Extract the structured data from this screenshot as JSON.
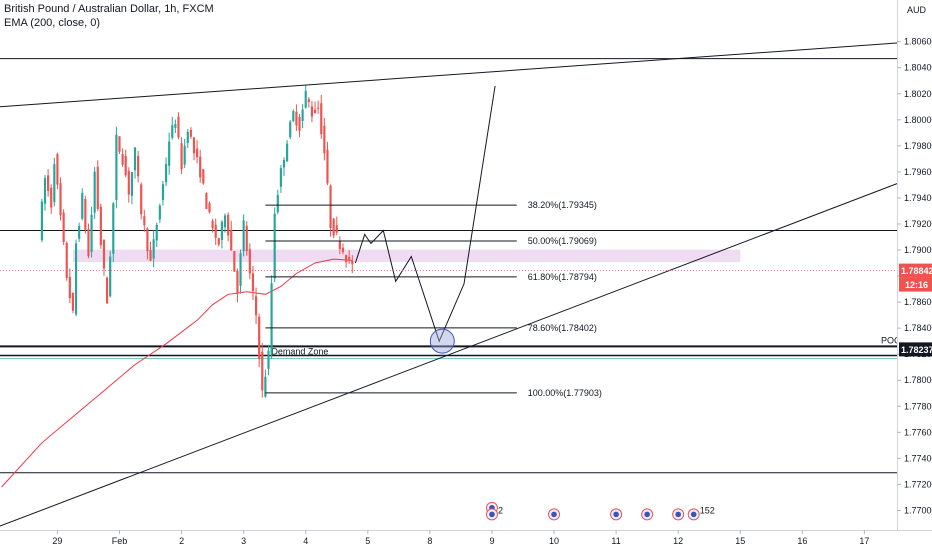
{
  "header": {
    "title": "British Pound / Australian Dollar, 1h, FXCM",
    "indicator": "EMA (200, close, 0)"
  },
  "colors": {
    "up": "#26a69a",
    "down": "#ef5350",
    "ema": "#f23645",
    "zone": "#e1bee7",
    "circle": "#3f51b5",
    "poc": "#26a69a"
  },
  "chart_data": {
    "type": "candlestick",
    "currency": "AUD",
    "ylim": [
      1.7685,
      1.8092
    ],
    "price_ticks": [
      {
        "v": 1.77,
        "label": "1.77000"
      },
      {
        "v": 1.772,
        "label": "1.77200"
      },
      {
        "v": 1.774,
        "label": "1.77400"
      },
      {
        "v": 1.776,
        "label": "1.77600"
      },
      {
        "v": 1.778,
        "label": "1.77800"
      },
      {
        "v": 1.78,
        "label": "1.78000"
      },
      {
        "v": 1.782,
        "label": "1.78200"
      },
      {
        "v": 1.784,
        "label": "1.78400"
      },
      {
        "v": 1.786,
        "label": "1.78600"
      },
      {
        "v": 1.788,
        "label": "1.78800"
      },
      {
        "v": 1.79,
        "label": "1.79000"
      },
      {
        "v": 1.792,
        "label": "1.79200"
      },
      {
        "v": 1.794,
        "label": "1.79400"
      },
      {
        "v": 1.796,
        "label": "1.79600"
      },
      {
        "v": 1.798,
        "label": "1.79800"
      },
      {
        "v": 1.8,
        "label": "1.80000"
      },
      {
        "v": 1.802,
        "label": "1.80200"
      },
      {
        "v": 1.804,
        "label": "1.80400"
      },
      {
        "v": 1.806,
        "label": "1.80600"
      }
    ],
    "time_ticks": [
      {
        "t": 5,
        "label": "29"
      },
      {
        "t": 25,
        "label": "Feb"
      },
      {
        "t": 45,
        "label": "2"
      },
      {
        "t": 65,
        "label": "3"
      },
      {
        "t": 85,
        "label": "4"
      },
      {
        "t": 105,
        "label": "5"
      },
      {
        "t": 125,
        "label": "8"
      },
      {
        "t": 145,
        "label": "9"
      },
      {
        "t": 165,
        "label": "10"
      },
      {
        "t": 185,
        "label": "11"
      },
      {
        "t": 205,
        "label": "12"
      },
      {
        "t": 225,
        "label": "15"
      },
      {
        "t": 245,
        "label": "16"
      },
      {
        "t": 265,
        "label": "17"
      }
    ],
    "xlim": [
      -13.5,
      275.5
    ],
    "candle_anchors": [
      [
        0,
        1.7912
      ],
      [
        2,
        1.7955
      ],
      [
        4,
        1.7935
      ],
      [
        5,
        1.797
      ],
      [
        7,
        1.7925
      ],
      [
        9,
        1.788
      ],
      [
        11,
        1.785
      ],
      [
        12,
        1.7905
      ],
      [
        14,
        1.794
      ],
      [
        16,
        1.7895
      ],
      [
        18,
        1.796
      ],
      [
        20,
        1.7905
      ],
      [
        22,
        1.786
      ],
      [
        24,
        1.7935
      ],
      [
        25,
        1.7985
      ],
      [
        27,
        1.797
      ],
      [
        29,
        1.7945
      ],
      [
        31,
        1.7975
      ],
      [
        33,
        1.793
      ],
      [
        36,
        1.789
      ],
      [
        38,
        1.792
      ],
      [
        40,
        1.795
      ],
      [
        42,
        1.7985
      ],
      [
        44,
        1.8
      ],
      [
        46,
        1.7965
      ],
      [
        48,
        1.7995
      ],
      [
        50,
        1.7975
      ],
      [
        52,
        1.796
      ],
      [
        54,
        1.7935
      ],
      [
        56,
        1.7915
      ],
      [
        58,
        1.7905
      ],
      [
        60,
        1.793
      ],
      [
        62,
        1.79
      ],
      [
        64,
        1.787
      ],
      [
        66,
        1.792
      ],
      [
        68,
        1.788
      ],
      [
        70,
        1.785
      ],
      [
        72,
        1.779
      ],
      [
        74,
        1.782
      ],
      [
        76,
        1.793
      ],
      [
        78,
        1.796
      ],
      [
        80,
        1.7985
      ],
      [
        82,
        1.8005
      ],
      [
        84,
        1.7995
      ],
      [
        86,
        1.802
      ],
      [
        88,
        1.8005
      ],
      [
        90,
        1.801
      ],
      [
        92,
        1.7975
      ],
      [
        94,
        1.792
      ],
      [
        96,
        1.791
      ],
      [
        98,
        1.79
      ],
      [
        100,
        1.789
      ]
    ],
    "ema": [
      [
        -13,
        1.7718
      ],
      [
        0,
        1.7752
      ],
      [
        10,
        1.7772
      ],
      [
        20,
        1.7792
      ],
      [
        30,
        1.7812
      ],
      [
        40,
        1.7828
      ],
      [
        50,
        1.7846
      ],
      [
        55,
        1.7858
      ],
      [
        60,
        1.7866
      ],
      [
        66,
        1.7868
      ],
      [
        72,
        1.7866
      ],
      [
        77,
        1.7872
      ],
      [
        82,
        1.7882
      ],
      [
        88,
        1.789
      ],
      [
        94,
        1.7893
      ],
      [
        100,
        1.7892
      ]
    ],
    "fibonacci": [
      {
        "label": "38.20%(1.79345)",
        "v": 1.79345
      },
      {
        "label": "50.00%(1.79069)",
        "v": 1.79069
      },
      {
        "label": "61.80%(1.78794)",
        "v": 1.78794
      },
      {
        "label": "78.60%(1.78402)",
        "v": 1.78402
      },
      {
        "label": "100.00%(1.77903)",
        "v": 1.77903
      }
    ],
    "fib_x_range": [
      72,
      153
    ],
    "demand_zone_label": "Demand Zone",
    "demand_zone_range": [
      1.7819,
      1.7826
    ],
    "poc_label": "POC",
    "horizontal_levels": [
      1.8047,
      1.7915,
      1.7729
    ],
    "trendlines": [
      {
        "from": [
          -13.5,
          1.801
        ],
        "to": [
          275.5,
          1.8059
        ]
      },
      {
        "from": [
          -13.5,
          1.7688
        ],
        "to": [
          275.5,
          1.7951
        ]
      }
    ],
    "zone_box": {
      "t": [
        10,
        225
      ],
      "v": [
        1.7893,
        1.7898
      ]
    },
    "projection": [
      [
        101,
        1.789
      ],
      [
        104,
        1.7912
      ],
      [
        106,
        1.7905
      ],
      [
        110,
        1.7915
      ],
      [
        114,
        1.7876
      ],
      [
        119,
        1.7895
      ],
      [
        128,
        1.783
      ],
      [
        136,
        1.7874
      ],
      [
        146,
        1.8026
      ]
    ],
    "target_circle": {
      "t": 129,
      "v": 1.783
    },
    "last_price": {
      "label": "1.78842",
      "v": 1.78842,
      "countdown": "12:16"
    },
    "poc_price": {
      "label": "1.78237",
      "v": 1.78237
    },
    "events": [
      {
        "t": 145,
        "v": 1.7702,
        "label": ""
      },
      {
        "t": 145,
        "v": 1.7697,
        "label": "2"
      },
      {
        "t": 165,
        "v": 1.7697,
        "label": ""
      },
      {
        "t": 185,
        "v": 1.7697,
        "label": ""
      },
      {
        "t": 195,
        "v": 1.7697,
        "label": ""
      },
      {
        "t": 205,
        "v": 1.7697,
        "label": ""
      },
      {
        "t": 210,
        "v": 1.7697,
        "label": "152"
      }
    ]
  }
}
